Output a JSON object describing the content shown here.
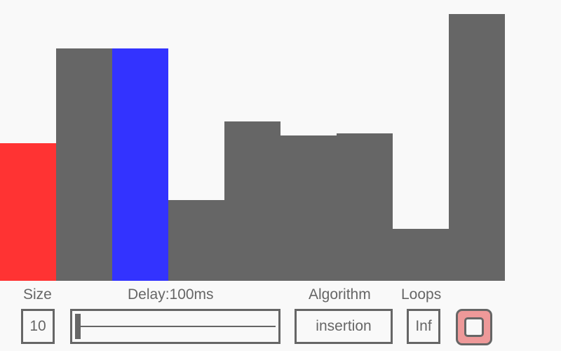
{
  "visualizer": {
    "max_value": 380,
    "bars": [
      {
        "value": 196,
        "state": "compare"
      },
      {
        "value": 331,
        "state": "default"
      },
      {
        "value": 331,
        "state": "current"
      },
      {
        "value": 115,
        "state": "default"
      },
      {
        "value": 227,
        "state": "default"
      },
      {
        "value": 207,
        "state": "default"
      },
      {
        "value": 210,
        "state": "default"
      },
      {
        "value": 74,
        "state": "default"
      },
      {
        "value": 380,
        "state": "default"
      },
      {
        "value": 0,
        "state": "default"
      }
    ],
    "colors": {
      "default": "#666666",
      "compare": "#ff3333",
      "current": "#3333ff"
    }
  },
  "controls": {
    "size": {
      "label": "Size",
      "value": "10"
    },
    "delay": {
      "label": "Delay:100ms",
      "slider_fraction": 0.0
    },
    "algorithm": {
      "label": "Algorithm",
      "value": "insertion"
    },
    "loops": {
      "label": "Loops",
      "value": "Inf"
    },
    "play_button": {
      "icon": "stop-icon",
      "color": "#ee9999"
    }
  }
}
